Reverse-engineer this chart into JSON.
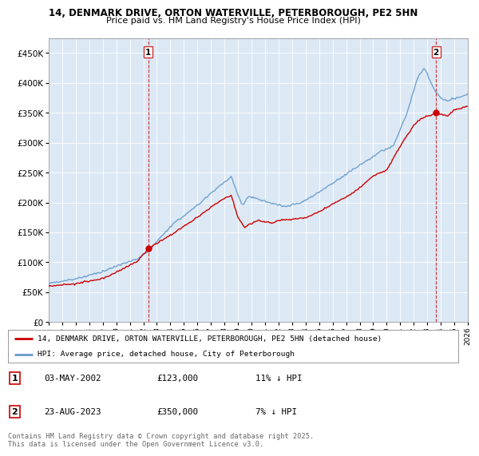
{
  "title_line1": "14, DENMARK DRIVE, ORTON WATERVILLE, PETERBOROUGH, PE2 5HN",
  "title_line2": "Price paid vs. HM Land Registry's House Price Index (HPI)",
  "legend_label_red": "14, DENMARK DRIVE, ORTON WATERVILLE, PETERBOROUGH, PE2 5HN (detached house)",
  "legend_label_blue": "HPI: Average price, detached house, City of Peterborough",
  "annotation1_date": "03-MAY-2002",
  "annotation1_price": "£123,000",
  "annotation1_hpi": "11% ↓ HPI",
  "annotation2_date": "23-AUG-2023",
  "annotation2_price": "£350,000",
  "annotation2_hpi": "7% ↓ HPI",
  "footer": "Contains HM Land Registry data © Crown copyright and database right 2025.\nThis data is licensed under the Open Government Licence v3.0.",
  "red_color": "#cc0000",
  "blue_color": "#6699cc",
  "chart_bg": "#dce9f5",
  "background_color": "#ffffff",
  "grid_color": "#ffffff",
  "ylim": [
    0,
    475000
  ],
  "yticks": [
    0,
    50000,
    100000,
    150000,
    200000,
    250000,
    300000,
    350000,
    400000,
    450000
  ],
  "start_year": 1995,
  "end_year": 2026,
  "sale1_year": 2002.37,
  "sale1_price": 123000,
  "sale2_year": 2023.65,
  "sale2_price": 350000
}
